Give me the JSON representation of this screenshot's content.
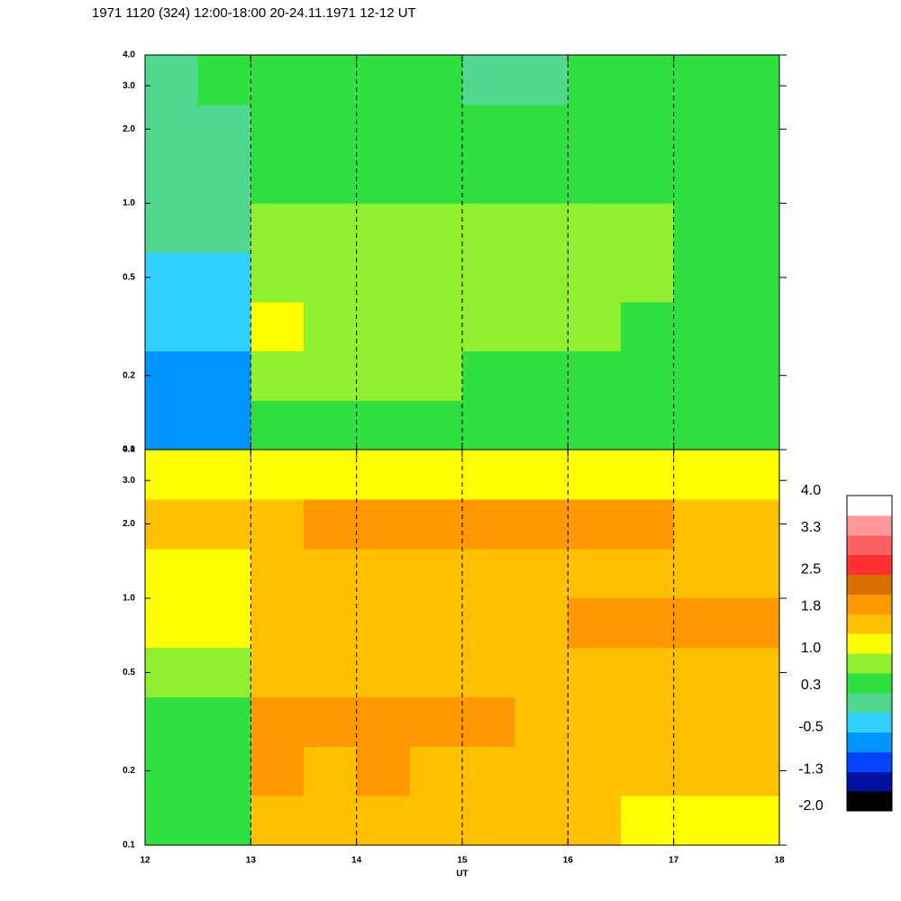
{
  "title": "1971 1120 (324) 12:00-18:00 20-24.11.1971  12-12 UT",
  "chart_data": [
    {
      "type": "heatmap",
      "log_y": true,
      "show_xtick_labels": false,
      "xlim": [
        12,
        18
      ],
      "xticks": [
        12,
        13,
        14,
        15,
        16,
        17,
        18
      ],
      "ylim": [
        0.1,
        4.0
      ],
      "yticks": [
        0.1,
        0.2,
        0.5,
        {
          "value": 1,
          "label": "1.0"
        },
        {
          "value": 2,
          "label": "2.0"
        },
        {
          "value": 3,
          "label": "3.0"
        },
        {
          "value": 4,
          "label": "4.0"
        }
      ],
      "z": [
        [
          -0.8,
          -0.6,
          -0.5,
          -0.3,
          -0.1,
          0.0,
          0.1,
          0.2
        ],
        [
          -0.7,
          -0.6,
          -0.5,
          -0.2,
          0.0,
          0.1,
          0.2,
          0.3
        ],
        [
          0.5,
          0.8,
          1.1,
          0.9,
          0.8,
          0.6,
          0.4,
          0.3
        ],
        [
          0.5,
          0.7,
          0.9,
          0.9,
          0.8,
          0.6,
          0.4,
          0.3
        ],
        [
          0.5,
          0.7,
          0.8,
          0.8,
          0.7,
          0.6,
          0.4,
          0.3
        ],
        [
          0.5,
          0.7,
          0.9,
          0.9,
          0.8,
          0.6,
          0.5,
          0.4
        ],
        [
          0.5,
          0.6,
          0.8,
          0.8,
          0.7,
          0.5,
          0.3,
          0.2
        ],
        [
          0.5,
          0.6,
          0.8,
          0.8,
          0.7,
          0.6,
          0.4,
          0.2
        ],
        [
          0.5,
          0.6,
          0.7,
          0.7,
          0.7,
          0.6,
          0.4,
          0.3
        ],
        [
          0.4,
          0.5,
          0.6,
          0.7,
          0.7,
          0.6,
          0.4,
          0.3
        ],
        [
          0.4,
          0.5,
          0.6,
          0.6,
          0.6,
          0.5,
          0.4,
          0.3
        ],
        [
          0.4,
          0.5,
          0.5,
          0.6,
          0.6,
          0.5,
          0.3,
          0.3
        ]
      ]
    },
    {
      "type": "heatmap",
      "log_y": true,
      "show_xtick_labels": true,
      "xlabel": "UT",
      "xlim": [
        12,
        18
      ],
      "xticks": [
        12,
        13,
        14,
        15,
        16,
        17,
        18
      ],
      "ylim": [
        0.1,
        4.0
      ],
      "yticks": [
        0.1,
        0.2,
        0.5,
        {
          "value": 1,
          "label": "1.0"
        },
        {
          "value": 2,
          "label": "2.0"
        },
        {
          "value": 3,
          "label": "3.0"
        },
        {
          "value": 4,
          "label": "4.0"
        }
      ],
      "z": [
        [
          0.4,
          0.5,
          0.6,
          0.8,
          1.0,
          1.2,
          1.4,
          1.3
        ],
        [
          0.4,
          0.5,
          0.6,
          0.8,
          1.0,
          1.3,
          1.5,
          1.3
        ],
        [
          1.5,
          1.8,
          1.9,
          1.6,
          1.6,
          1.5,
          1.7,
          1.2
        ],
        [
          1.4,
          1.7,
          1.8,
          1.5,
          1.6,
          1.5,
          1.8,
          1.2
        ],
        [
          1.5,
          1.8,
          1.9,
          1.6,
          1.6,
          1.5,
          1.8,
          1.2
        ],
        [
          1.5,
          1.7,
          1.8,
          1.6,
          1.7,
          1.5,
          1.8,
          1.2
        ],
        [
          1.4,
          1.7,
          1.8,
          1.6,
          1.7,
          1.6,
          1.8,
          1.2
        ],
        [
          1.4,
          1.6,
          1.7,
          1.5,
          1.7,
          1.6,
          1.8,
          1.2
        ],
        [
          1.4,
          1.6,
          1.7,
          1.5,
          1.8,
          1.6,
          1.8,
          1.2
        ],
        [
          1.3,
          1.5,
          1.6,
          1.5,
          1.9,
          1.6,
          1.8,
          1.2
        ],
        [
          1.3,
          1.5,
          1.6,
          1.5,
          1.9,
          1.6,
          1.7,
          1.2
        ],
        [
          1.2,
          1.4,
          1.5,
          1.4,
          1.9,
          1.6,
          1.6,
          1.2
        ]
      ]
    }
  ],
  "colorbar": {
    "clim": [
      -2,
      4
    ],
    "colors": [
      "#000000",
      "#0010a0",
      "#0044ff",
      "#0094ff",
      "#30d0ff",
      "#50d890",
      "#30e040",
      "#90f030",
      "#ffff00",
      "#ffc000",
      "#ff9800",
      "#d87000",
      "#ff3030",
      "#ff6060",
      "#ff9898",
      "#ffffff"
    ],
    "ticks": [
      {
        "value": 4,
        "label": "4.0"
      },
      3.3,
      2.5,
      1.8,
      {
        "value": 1,
        "label": "1.0"
      },
      0.3,
      -0.5,
      -1.3,
      {
        "value": -2,
        "label": "-2.0"
      }
    ]
  }
}
